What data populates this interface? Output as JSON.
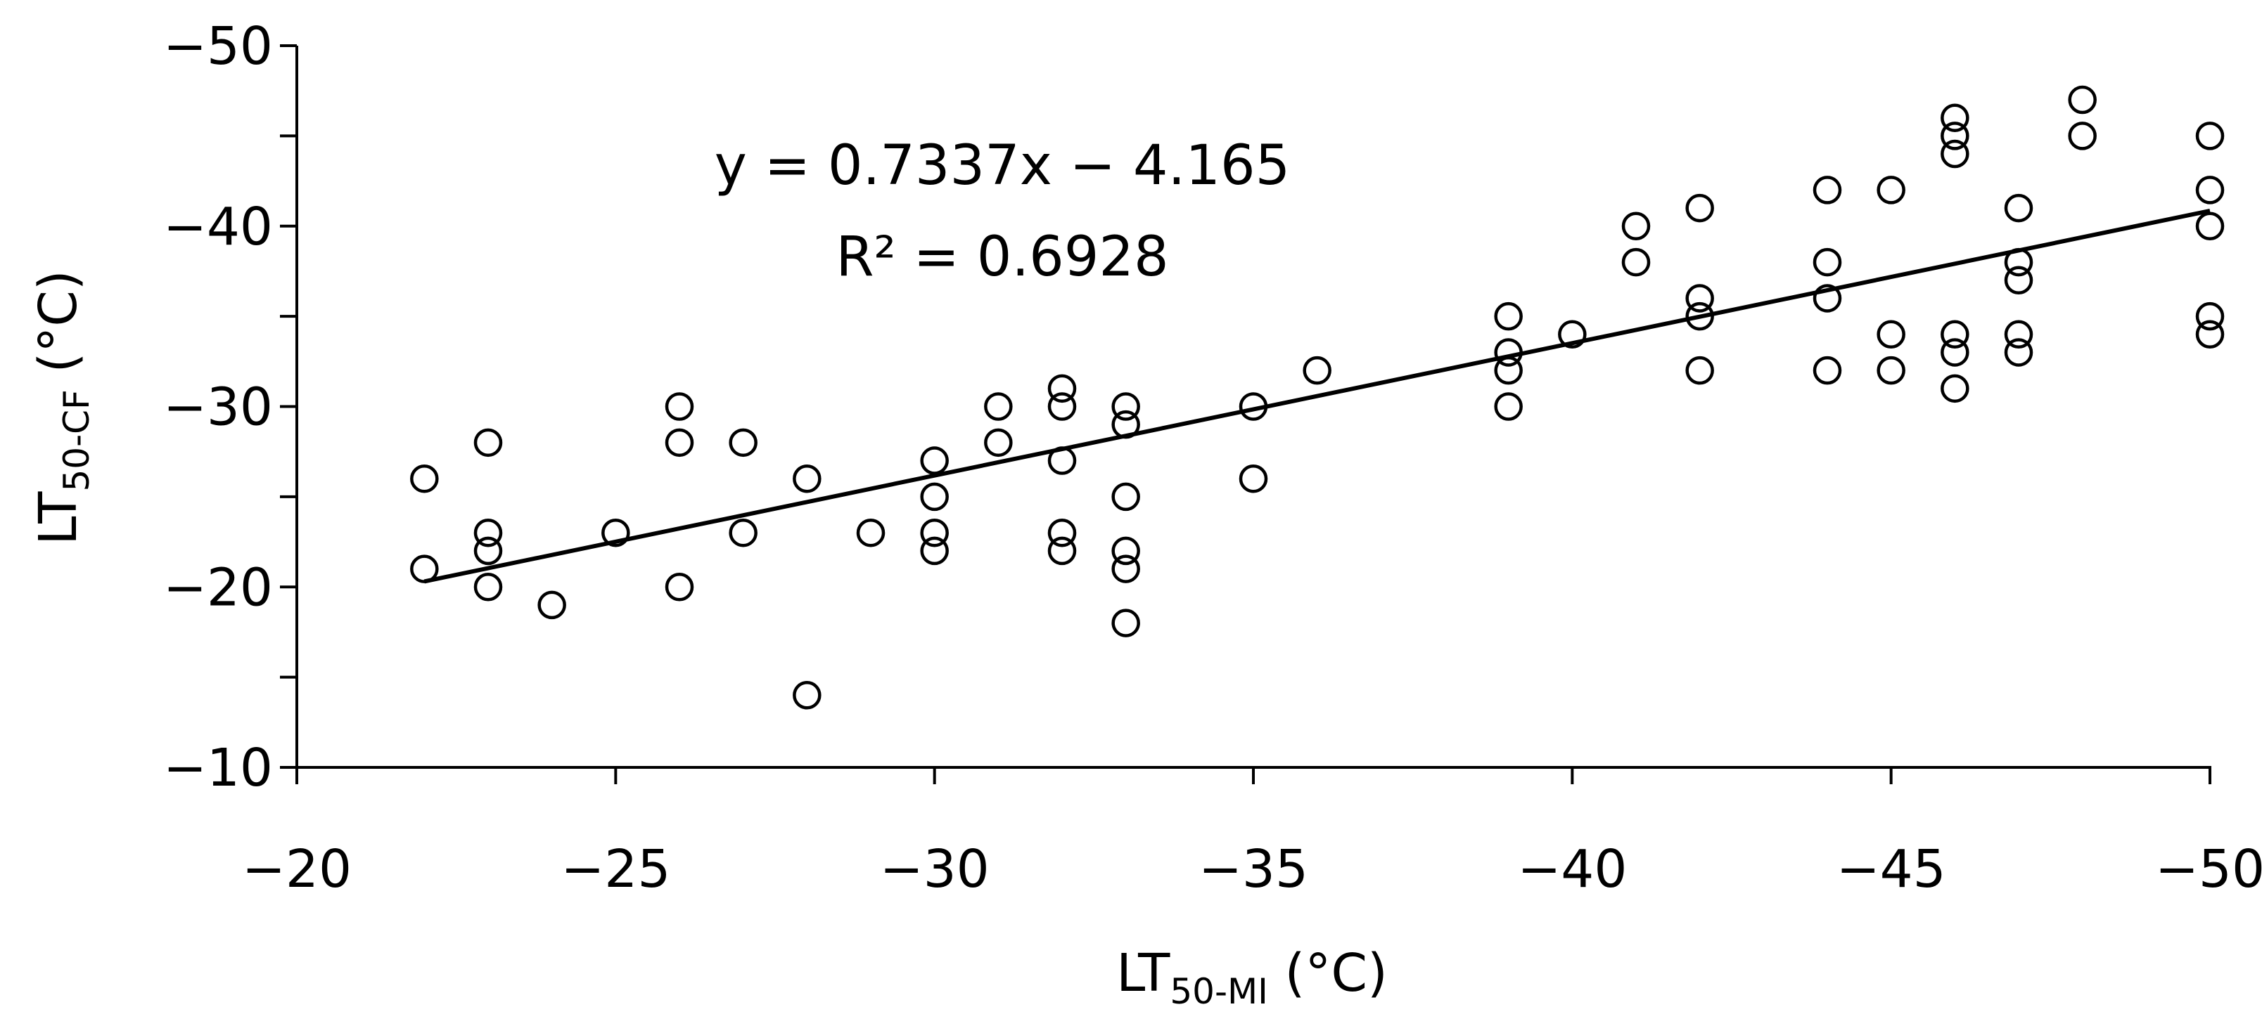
{
  "chart_data": {
    "type": "scatter",
    "title": "",
    "xlabel": {
      "main": "LT",
      "sub": "50-MI",
      "suffix": " (°C)"
    },
    "ylabel": {
      "main": "LT",
      "sub": "50-CF",
      "suffix": " (°C)"
    },
    "xlim": [
      -20,
      -50
    ],
    "ylim": [
      -10,
      -50
    ],
    "x_ticks": [
      -20,
      -25,
      -30,
      -35,
      -40,
      -45,
      -50
    ],
    "x_tick_labels": [
      "−20",
      "−25",
      "−30",
      "−35",
      "−40",
      "−45",
      "−50"
    ],
    "y_ticks": [
      -10,
      -20,
      -30,
      -40,
      -50
    ],
    "y_tick_labels": [
      "−10",
      "−20",
      "−30",
      "−40",
      "−50"
    ],
    "y_minor_ticks": [
      -15,
      -25,
      -35,
      -45
    ],
    "grid": false,
    "legend": "none",
    "marker": "open-circle",
    "color": "#000000",
    "points": [
      [
        -22,
        -26
      ],
      [
        -22,
        -21
      ],
      [
        -23,
        -28
      ],
      [
        -23,
        -23
      ],
      [
        -23,
        -22
      ],
      [
        -23,
        -20
      ],
      [
        -24,
        -19
      ],
      [
        -25,
        -23
      ],
      [
        -26,
        -30
      ],
      [
        -26,
        -28
      ],
      [
        -26,
        -20
      ],
      [
        -27,
        -28
      ],
      [
        -27,
        -23
      ],
      [
        -28,
        -26
      ],
      [
        -28,
        -14
      ],
      [
        -29,
        -23
      ],
      [
        -30,
        -27
      ],
      [
        -30,
        -25
      ],
      [
        -30,
        -23
      ],
      [
        -30,
        -22
      ],
      [
        -31,
        -30
      ],
      [
        -31,
        -28
      ],
      [
        -32,
        -31
      ],
      [
        -32,
        -30
      ],
      [
        -32,
        -27
      ],
      [
        -32,
        -23
      ],
      [
        -32,
        -22
      ],
      [
        -33,
        -30
      ],
      [
        -33,
        -29
      ],
      [
        -33,
        -25
      ],
      [
        -33,
        -22
      ],
      [
        -33,
        -21
      ],
      [
        -33,
        -18
      ],
      [
        -35,
        -30
      ],
      [
        -35,
        -26
      ],
      [
        -36,
        -32
      ],
      [
        -39,
        -35
      ],
      [
        -39,
        -33
      ],
      [
        -39,
        -32
      ],
      [
        -39,
        -30
      ],
      [
        -40,
        -34
      ],
      [
        -41,
        -40
      ],
      [
        -41,
        -38
      ],
      [
        -42,
        -41
      ],
      [
        -42,
        -36
      ],
      [
        -42,
        -35
      ],
      [
        -42,
        -32
      ],
      [
        -44,
        -42
      ],
      [
        -44,
        -38
      ],
      [
        -44,
        -36
      ],
      [
        -44,
        -32
      ],
      [
        -45,
        -42
      ],
      [
        -45,
        -34
      ],
      [
        -45,
        -32
      ],
      [
        -46,
        -46
      ],
      [
        -46,
        -45
      ],
      [
        -46,
        -44
      ],
      [
        -46,
        -34
      ],
      [
        -46,
        -33
      ],
      [
        -46,
        -31
      ],
      [
        -47,
        -41
      ],
      [
        -47,
        -38
      ],
      [
        -47,
        -37
      ],
      [
        -47,
        -34
      ],
      [
        -47,
        -33
      ],
      [
        -48,
        -47
      ],
      [
        -48,
        -45
      ],
      [
        -50,
        -45
      ],
      [
        -50,
        -42
      ],
      [
        -50,
        -40
      ],
      [
        -50,
        -35
      ],
      [
        -50,
        -34
      ]
    ],
    "trendline": {
      "slope": 0.7337,
      "intercept": -4.165,
      "x_range": [
        -22,
        -50
      ],
      "equation": "y = 0.7337x − 4.165",
      "r_squared_label": "R² = 0.6928"
    }
  }
}
